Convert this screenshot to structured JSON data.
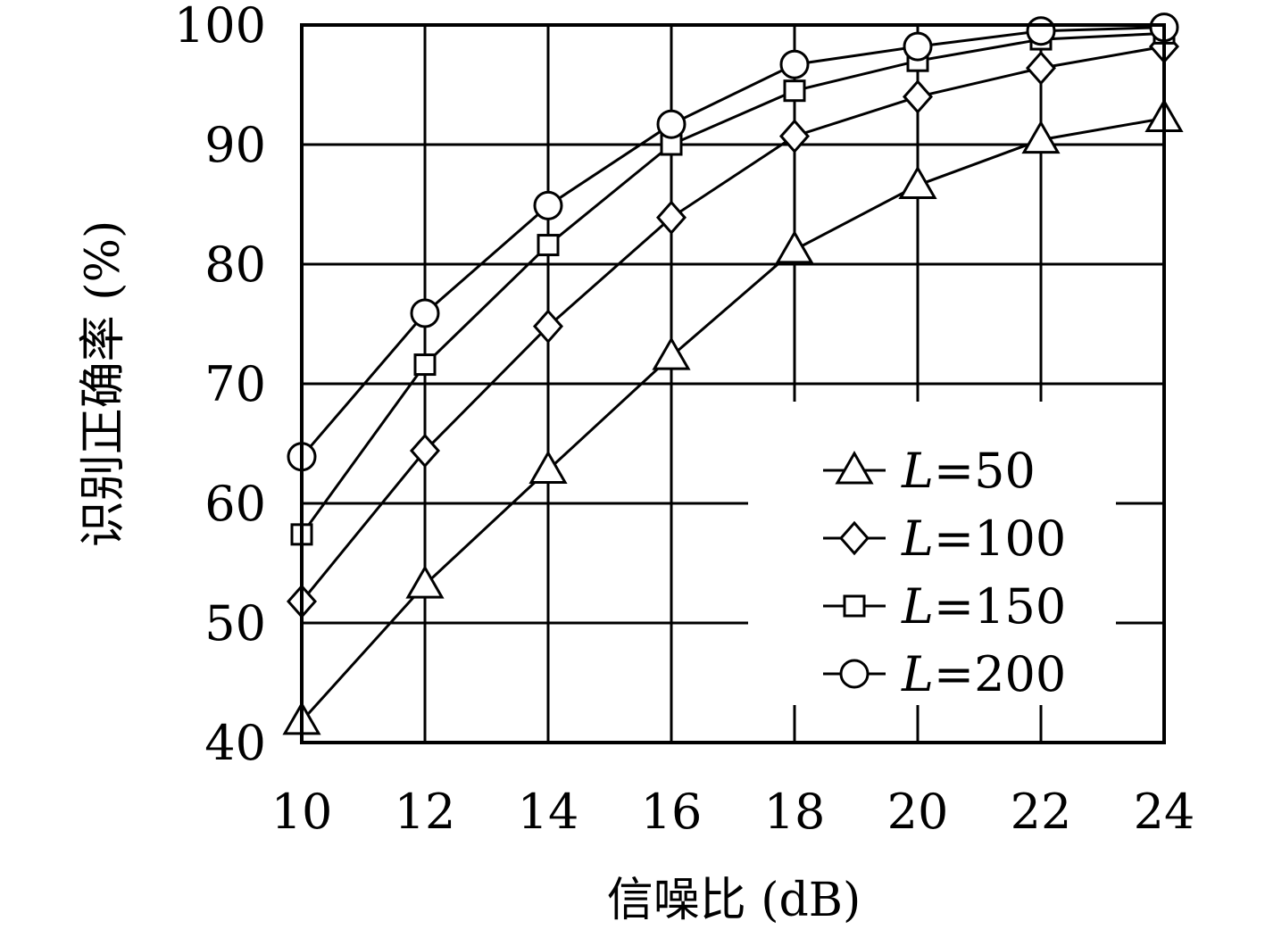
{
  "chart_data": {
    "type": "line",
    "title": "",
    "xlabel": "信噪比 (dB)",
    "ylabel": "识别正确率 (%)",
    "x": [
      10,
      12,
      14,
      16,
      18,
      20,
      22,
      24
    ],
    "xlim": [
      10,
      24
    ],
    "ylim": [
      40,
      100
    ],
    "xticks": [
      "10",
      "12",
      "14",
      "16",
      "18",
      "20",
      "22",
      "24"
    ],
    "yticks": [
      "40",
      "50",
      "60",
      "70",
      "80",
      "90",
      "100"
    ],
    "grid": true,
    "legend_position": "bottom-right",
    "series": [
      {
        "name": "L=50",
        "var": "L",
        "eq": "=50",
        "marker": "triangle",
        "values": [
          41.8,
          53.2,
          62.8,
          72.3,
          81.2,
          86.6,
          90.4,
          92.2
        ]
      },
      {
        "name": "L=100",
        "var": "L",
        "eq": "=100",
        "marker": "diamond",
        "values": [
          51.8,
          64.4,
          74.8,
          83.9,
          90.7,
          94.0,
          96.4,
          98.2
        ]
      },
      {
        "name": "L=150",
        "var": "L",
        "eq": "=150",
        "marker": "square",
        "values": [
          57.4,
          71.6,
          81.6,
          90.0,
          94.5,
          97.0,
          98.8,
          99.3
        ]
      },
      {
        "name": "L=200",
        "var": "L",
        "eq": "=200",
        "marker": "circle",
        "values": [
          63.9,
          75.9,
          84.9,
          91.7,
          96.7,
          98.2,
          99.5,
          99.8
        ]
      }
    ]
  }
}
